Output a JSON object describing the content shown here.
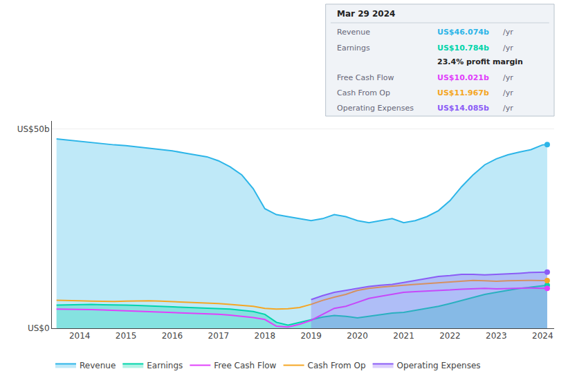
{
  "chart_data": {
    "type": "line",
    "x": [
      2013.5,
      2013.75,
      2014,
      2014.25,
      2014.5,
      2014.75,
      2015,
      2015.25,
      2015.5,
      2015.75,
      2016,
      2016.25,
      2016.5,
      2016.75,
      2017,
      2017.25,
      2017.5,
      2017.75,
      2018,
      2018.25,
      2018.5,
      2018.75,
      2019,
      2019.25,
      2019.5,
      2019.75,
      2020,
      2020.25,
      2020.5,
      2020.75,
      2021,
      2021.25,
      2021.5,
      2021.75,
      2022,
      2022.25,
      2022.5,
      2022.75,
      2023,
      2023.25,
      2023.5,
      2023.75,
      2024,
      2024.1
    ],
    "series": [
      {
        "name": "Revenue",
        "type": "area",
        "color": "#2cb5e8",
        "values": [
          47.5,
          47.2,
          46.8,
          46.5,
          46.2,
          46.0,
          45.8,
          45.5,
          45.2,
          44.8,
          44.5,
          44.0,
          43.5,
          43.0,
          42.0,
          40.5,
          38.5,
          35.0,
          30.0,
          28.5,
          28.0,
          27.5,
          27.0,
          27.5,
          28.5,
          28.0,
          27.0,
          26.5,
          27.0,
          27.5,
          26.5,
          27.0,
          28.0,
          29.5,
          32.0,
          35.5,
          38.5,
          41.0,
          42.5,
          43.5,
          44.2,
          44.8,
          46.0,
          46.074
        ]
      },
      {
        "name": "Earnings",
        "type": "area",
        "color": "#00d4aa",
        "values": [
          5.8,
          5.9,
          6.0,
          6.0,
          5.9,
          5.9,
          5.8,
          5.7,
          5.6,
          5.5,
          5.4,
          5.3,
          5.2,
          5.1,
          5.0,
          4.8,
          4.5,
          4.2,
          3.5,
          1.5,
          0.8,
          1.5,
          2.2,
          2.8,
          3.2,
          3.0,
          2.6,
          3.0,
          3.5,
          3.8,
          4.0,
          4.5,
          5.0,
          5.5,
          6.2,
          7.0,
          7.8,
          8.5,
          9.0,
          9.5,
          10.0,
          10.3,
          10.6,
          10.784
        ]
      },
      {
        "name": "Free Cash Flow",
        "type": "line",
        "color": "#e040fb",
        "values": [
          4.8,
          4.8,
          4.7,
          4.7,
          4.6,
          4.5,
          4.4,
          4.3,
          4.2,
          4.1,
          4.0,
          3.9,
          3.8,
          3.7,
          3.5,
          3.3,
          3.0,
          2.7,
          2.2,
          0.5,
          0.3,
          1.0,
          2.0,
          3.5,
          5.0,
          5.5,
          6.5,
          7.5,
          8.0,
          8.5,
          9.0,
          9.2,
          9.3,
          9.4,
          9.6,
          9.8,
          9.9,
          10.0,
          9.9,
          10.0,
          10.1,
          10.1,
          10.0,
          10.021
        ]
      },
      {
        "name": "Cash From Op",
        "type": "line",
        "color": "#f5a623",
        "values": [
          7.0,
          7.0,
          6.9,
          6.8,
          6.7,
          6.7,
          6.8,
          6.9,
          6.9,
          6.8,
          6.7,
          6.6,
          6.5,
          6.4,
          6.2,
          6.0,
          5.8,
          5.5,
          5.0,
          4.8,
          4.9,
          5.2,
          6.0,
          7.0,
          7.8,
          8.5,
          9.5,
          10.0,
          10.3,
          10.6,
          10.8,
          11.0,
          11.2,
          11.4,
          11.6,
          11.8,
          12.0,
          11.9,
          11.8,
          11.9,
          12.0,
          12.0,
          11.95,
          11.967
        ]
      },
      {
        "name": "Operating Expenses",
        "type": "area",
        "color": "#8b5cf6",
        "values": [
          null,
          null,
          null,
          null,
          null,
          null,
          null,
          null,
          null,
          null,
          null,
          null,
          null,
          null,
          null,
          null,
          null,
          null,
          null,
          null,
          null,
          null,
          7.2,
          8.2,
          9.0,
          9.5,
          10.0,
          10.5,
          10.8,
          11.0,
          11.5,
          12.0,
          12.5,
          13.0,
          13.2,
          13.5,
          13.5,
          13.4,
          13.5,
          13.6,
          13.8,
          14.0,
          14.05,
          14.085
        ]
      }
    ],
    "xlim": [
      2013.4,
      2024.25
    ],
    "xticks": [
      2014,
      2015,
      2016,
      2017,
      2018,
      2019,
      2020,
      2021,
      2022,
      2023,
      2024
    ],
    "ylim": [
      0,
      52
    ],
    "yticks": [
      {
        "value": 0,
        "label": "US$0"
      },
      {
        "value": 50,
        "label": "US$50b"
      }
    ],
    "grid": true,
    "legend": "bottom",
    "tooltip": {
      "title": "Mar 29 2024",
      "rows": [
        {
          "label": "Revenue",
          "value": "US$46.074b",
          "unit": "/yr",
          "color": "#2cb5e8"
        },
        {
          "label": "Earnings",
          "value": "US$10.784b",
          "unit": "/yr",
          "color": "#00d4aa",
          "extra": "23.4% profit margin"
        },
        {
          "label": "Free Cash Flow",
          "value": "US$10.021b",
          "unit": "/yr",
          "color": "#e040fb"
        },
        {
          "label": "Cash From Op",
          "value": "US$11.967b",
          "unit": "/yr",
          "color": "#f5a623"
        },
        {
          "label": "Operating Expenses",
          "value": "US$14.085b",
          "unit": "/yr",
          "color": "#8b5cf6"
        }
      ]
    }
  }
}
